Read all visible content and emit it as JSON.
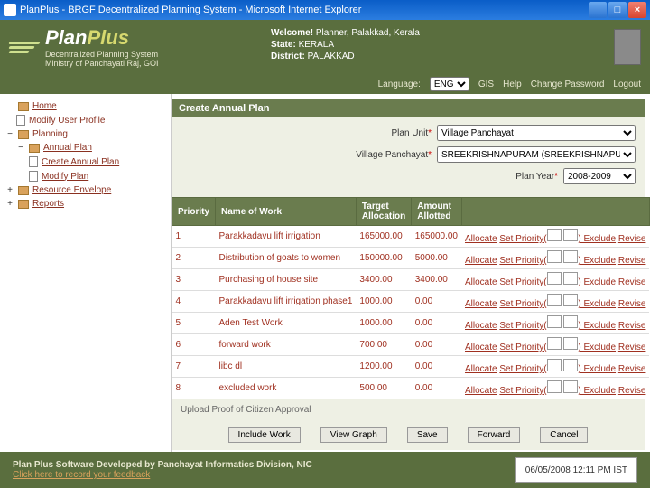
{
  "window": {
    "title": "PlanPlus - BRGF Decentralized Planning System - Microsoft Internet Explorer"
  },
  "header": {
    "brand1": "Plan",
    "brand2": "Plus",
    "sub1": "Decentralized Planning System",
    "sub2": "Ministry of Panchayati Raj, GOI",
    "welcome_label": "Welcome!",
    "welcome_user": "Planner, Palakkad, Kerala",
    "state_label": "State:",
    "state": "KERALA",
    "district_label": "District:",
    "district": "PALAKKAD"
  },
  "topbar": {
    "lang_label": "Language:",
    "lang_value": "ENG",
    "links": [
      "GIS",
      "Help",
      "Change Password",
      "Logout"
    ]
  },
  "sidebar": {
    "home": "Home",
    "modify": "Modify User Profile",
    "planning": "Planning",
    "annual": "Annual Plan",
    "create": "Create Annual Plan",
    "modifyplan": "Modify Plan",
    "resource": "Resource Envelope",
    "reports": "Reports"
  },
  "panel": {
    "title": "Create Annual Plan",
    "plan_unit_label": "Plan Unit",
    "plan_unit_value": "Village Panchayat",
    "vp_label": "Village Panchayat",
    "vp_value": "SREEKRISHNAPURAM (SREEKRISHNAPURAM Block Panchayat)",
    "year_label": "Plan Year",
    "year_value": "2008-2009"
  },
  "table": {
    "h1": "Priority",
    "h2": "Name of Work",
    "h3": "Target Allocation",
    "h4": "Amount Allotted",
    "actions": {
      "alloc": "Allocate",
      "setp": "Set Priority(",
      "excl": ") Exclude",
      "rev": "Revise"
    },
    "rows": [
      {
        "p": "1",
        "n": "Parakkadavu lift irrigation",
        "t": "165000.00",
        "a": "165000.00"
      },
      {
        "p": "2",
        "n": "Distribution of goats to women",
        "t": "150000.00",
        "a": "5000.00"
      },
      {
        "p": "3",
        "n": "Purchasing of house site",
        "t": "3400.00",
        "a": "3400.00"
      },
      {
        "p": "4",
        "n": "Parakkadavu lift irrigation phase1",
        "t": "1000.00",
        "a": "0.00"
      },
      {
        "p": "5",
        "n": "Aden Test Work",
        "t": "1000.00",
        "a": "0.00"
      },
      {
        "p": "6",
        "n": "forward work",
        "t": "700.00",
        "a": "0.00"
      },
      {
        "p": "7",
        "n": "libc dl",
        "t": "1200.00",
        "a": "0.00"
      },
      {
        "p": "8",
        "n": "excluded work",
        "t": "500.00",
        "a": "0.00"
      }
    ]
  },
  "upload": "Upload Proof of Citizen Approval",
  "buttons": {
    "include": "Include Work",
    "graph": "View Graph",
    "save": "Save",
    "forward": "Forward",
    "cancel": "Cancel"
  },
  "footer": {
    "dev": "Plan Plus Software Developed by Panchayat Informatics Division, NIC",
    "feedback": "Click here to record your feedback",
    "timestamp": "06/05/2008 12:11 PM IST"
  }
}
